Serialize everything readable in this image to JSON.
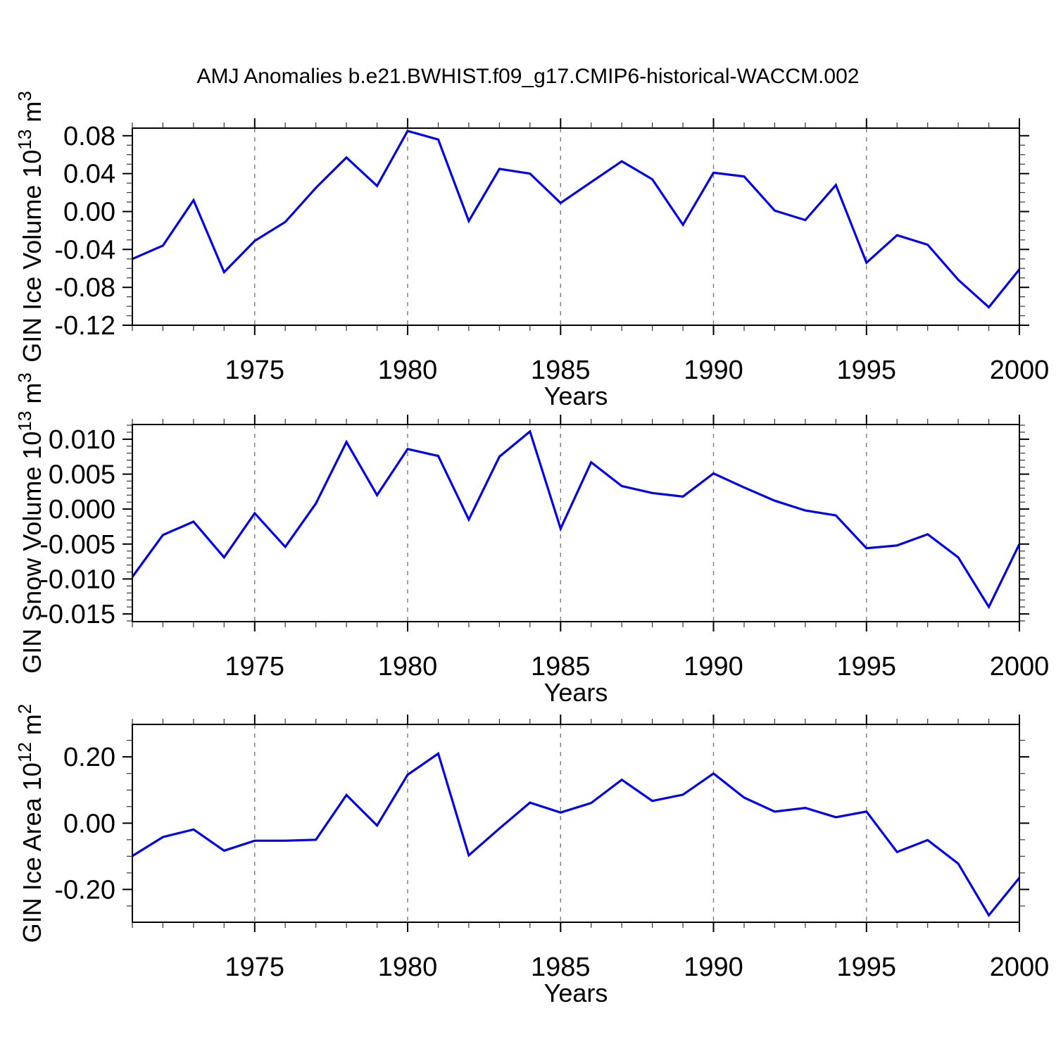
{
  "title": "AMJ Anomalies b.e21.BWHIST.f09_g17.CMIP6-historical-WACCM.002",
  "colors": {
    "line": "#0000ee",
    "frame": "#000000",
    "grid": "#7d7d7d",
    "text": "#000000"
  },
  "chart_data": [
    {
      "type": "line",
      "ylabel": {
        "prefix": "GIN Ice Volume 10",
        "power": "13",
        "unit": " m",
        "unit_power": "3"
      },
      "xlabel": "Years",
      "xlim": [
        1971,
        2000
      ],
      "ylim": [
        -0.12,
        0.088
      ],
      "grid_x": [
        1975,
        1980,
        1985,
        1990,
        1995
      ],
      "xticks": [
        {
          "v": 1975,
          "label": "1975"
        },
        {
          "v": 1980,
          "label": "1980"
        },
        {
          "v": 1985,
          "label": "1985"
        },
        {
          "v": 1990,
          "label": "1990"
        },
        {
          "v": 1995,
          "label": "1995"
        },
        {
          "v": 2000,
          "label": "2000"
        }
      ],
      "yticks": [
        {
          "v": 0.08,
          "label": "0.08"
        },
        {
          "v": 0.04,
          "label": "0.04"
        },
        {
          "v": 0,
          "label": "0.00"
        },
        {
          "v": -0.04,
          "label": "-0.04"
        },
        {
          "v": -0.08,
          "label": "-0.08"
        },
        {
          "v": -0.12,
          "label": "-0.12"
        }
      ],
      "y_minor_step": 0.01,
      "x_minor_step": 1,
      "years": [
        1971,
        1972,
        1973,
        1974,
        1975,
        1976,
        1977,
        1978,
        1979,
        1980,
        1981,
        1982,
        1983,
        1984,
        1985,
        1986,
        1987,
        1988,
        1989,
        1990,
        1991,
        1992,
        1993,
        1994,
        1995,
        1996,
        1997,
        1998,
        1999,
        2000
      ],
      "values": [
        -0.05,
        -0.036,
        0.012,
        -0.064,
        -0.031,
        -0.011,
        0.025,
        0.057,
        0.027,
        0.085,
        0.076,
        -0.01,
        0.045,
        0.04,
        0.009,
        0.031,
        0.053,
        0.034,
        -0.014,
        0.041,
        0.037,
        0.001,
        -0.009,
        0.028,
        -0.054,
        -0.025,
        -0.035,
        -0.072,
        -0.101,
        -0.061
      ]
    },
    {
      "type": "line",
      "ylabel": {
        "prefix": "GIN Snow Volume 10",
        "power": "13",
        "unit": " m",
        "unit_power": "3"
      },
      "xlabel": "Years",
      "xlim": [
        1971,
        2000
      ],
      "ylim": [
        -0.0161,
        0.0121
      ],
      "grid_x": [
        1975,
        1980,
        1985,
        1990,
        1995
      ],
      "xticks": [
        {
          "v": 1975,
          "label": "1975"
        },
        {
          "v": 1980,
          "label": "1980"
        },
        {
          "v": 1985,
          "label": "1985"
        },
        {
          "v": 1990,
          "label": "1990"
        },
        {
          "v": 1995,
          "label": "1995"
        },
        {
          "v": 2000,
          "label": "2000"
        }
      ],
      "yticks": [
        {
          "v": 0.01,
          "label": "0.010"
        },
        {
          "v": 0.005,
          "label": "0.005"
        },
        {
          "v": 0,
          "label": "0.000"
        },
        {
          "v": -0.005,
          "label": "-0.005"
        },
        {
          "v": -0.01,
          "label": "-0.010"
        },
        {
          "v": -0.015,
          "label": "-0.015"
        }
      ],
      "y_minor_step": 0.001,
      "x_minor_step": 1,
      "years": [
        1971,
        1972,
        1973,
        1974,
        1975,
        1976,
        1977,
        1978,
        1979,
        1980,
        1981,
        1982,
        1983,
        1984,
        1985,
        1986,
        1987,
        1988,
        1989,
        1990,
        1991,
        1992,
        1993,
        1994,
        1995,
        1996,
        1997,
        1998,
        1999,
        2000
      ],
      "values": [
        -0.0097,
        -0.0037,
        -0.0018,
        -0.0069,
        -0.0006,
        -0.0054,
        0.0008,
        0.0096,
        0.002,
        0.0086,
        0.0076,
        -0.0015,
        0.0075,
        0.0111,
        -0.0028,
        0.0067,
        0.0033,
        0.0023,
        0.0018,
        0.0051,
        0.0031,
        0.0012,
        -0.0002,
        -0.0009,
        -0.0056,
        -0.0052,
        -0.0036,
        -0.0069,
        -0.014,
        -0.005
      ]
    },
    {
      "type": "line",
      "ylabel": {
        "prefix": "GIN Ice Area 10",
        "power": "12",
        "unit": " m",
        "unit_power": "2"
      },
      "xlabel": "Years",
      "xlim": [
        1971,
        2000
      ],
      "ylim": [
        -0.299,
        0.298
      ],
      "grid_x": [
        1975,
        1980,
        1985,
        1990,
        1995
      ],
      "xticks": [
        {
          "v": 1975,
          "label": "1975"
        },
        {
          "v": 1980,
          "label": "1980"
        },
        {
          "v": 1985,
          "label": "1985"
        },
        {
          "v": 1990,
          "label": "1990"
        },
        {
          "v": 1995,
          "label": "1995"
        },
        {
          "v": 2000,
          "label": "2000"
        }
      ],
      "yticks": [
        {
          "v": 0.2,
          "label": "0.20"
        },
        {
          "v": 0,
          "label": "0.00"
        },
        {
          "v": -0.2,
          "label": "-0.20"
        }
      ],
      "y_minor_step": 0.05,
      "x_minor_step": 1,
      "years": [
        1971,
        1972,
        1973,
        1974,
        1975,
        1976,
        1977,
        1978,
        1979,
        1980,
        1981,
        1982,
        1983,
        1984,
        1985,
        1986,
        1987,
        1988,
        1989,
        1990,
        1991,
        1992,
        1993,
        1994,
        1995,
        1996,
        1997,
        1998,
        1999,
        2000
      ],
      "values": [
        -0.099,
        -0.042,
        -0.019,
        -0.083,
        -0.053,
        -0.053,
        -0.05,
        0.085,
        -0.007,
        0.146,
        0.21,
        -0.097,
        -0.016,
        0.062,
        0.032,
        0.061,
        0.131,
        0.067,
        0.086,
        0.15,
        0.077,
        0.035,
        0.046,
        0.018,
        0.035,
        -0.087,
        -0.051,
        -0.122,
        -0.278,
        -0.165
      ]
    }
  ]
}
